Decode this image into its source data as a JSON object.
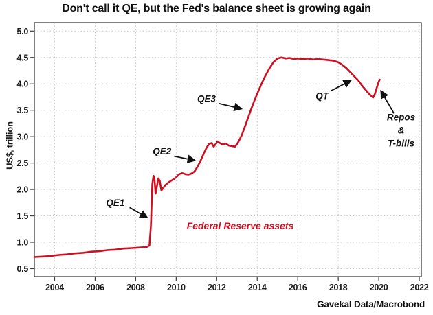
{
  "chart_data": {
    "type": "line",
    "title": "Don't call it QE, but the Fed's balance sheet is growing again",
    "ylabel": "US$, trillion",
    "xlabel": "",
    "source": "Gavekal Data/Macrobond",
    "grid": true,
    "legend_position": "none",
    "line_color": "#cc1022",
    "x_ticks": [
      2004,
      2006,
      2008,
      2010,
      2012,
      2014,
      2016,
      2018,
      2020,
      2022
    ],
    "y_ticks": [
      0.5,
      1.0,
      1.5,
      2.0,
      2.5,
      3.0,
      3.5,
      4.0,
      4.5,
      5.0
    ],
    "x_range": [
      2003.0,
      2022.1
    ],
    "y_range": [
      0.35,
      5.16
    ],
    "series": [
      {
        "name": "Federal Reserve assets",
        "color": "#cc1022",
        "label_pos": [
          2013.16,
          1.25
        ],
        "points": [
          [
            2003.0,
            0.72
          ],
          [
            2003.4,
            0.73
          ],
          [
            2003.8,
            0.74
          ],
          [
            2004.2,
            0.76
          ],
          [
            2004.6,
            0.77
          ],
          [
            2005.0,
            0.79
          ],
          [
            2005.4,
            0.8
          ],
          [
            2005.8,
            0.82
          ],
          [
            2006.2,
            0.83
          ],
          [
            2006.6,
            0.85
          ],
          [
            2007.0,
            0.86
          ],
          [
            2007.4,
            0.88
          ],
          [
            2007.8,
            0.89
          ],
          [
            2008.2,
            0.9
          ],
          [
            2008.55,
            0.91
          ],
          [
            2008.68,
            0.94
          ],
          [
            2008.75,
            1.3
          ],
          [
            2008.82,
            2.1
          ],
          [
            2008.88,
            2.26
          ],
          [
            2008.93,
            2.2
          ],
          [
            2008.98,
            1.92
          ],
          [
            2009.05,
            2.06
          ],
          [
            2009.12,
            2.21
          ],
          [
            2009.19,
            2.16
          ],
          [
            2009.27,
            1.98
          ],
          [
            2009.36,
            2.03
          ],
          [
            2009.46,
            2.08
          ],
          [
            2009.58,
            2.12
          ],
          [
            2009.72,
            2.16
          ],
          [
            2009.86,
            2.19
          ],
          [
            2010.0,
            2.23
          ],
          [
            2010.15,
            2.29
          ],
          [
            2010.3,
            2.31
          ],
          [
            2010.45,
            2.29
          ],
          [
            2010.6,
            2.28
          ],
          [
            2010.75,
            2.3
          ],
          [
            2010.9,
            2.34
          ],
          [
            2011.05,
            2.43
          ],
          [
            2011.2,
            2.54
          ],
          [
            2011.35,
            2.67
          ],
          [
            2011.5,
            2.79
          ],
          [
            2011.62,
            2.86
          ],
          [
            2011.75,
            2.88
          ],
          [
            2011.85,
            2.81
          ],
          [
            2011.95,
            2.86
          ],
          [
            2012.05,
            2.91
          ],
          [
            2012.15,
            2.88
          ],
          [
            2012.3,
            2.85
          ],
          [
            2012.45,
            2.87
          ],
          [
            2012.6,
            2.83
          ],
          [
            2012.75,
            2.82
          ],
          [
            2012.9,
            2.81
          ],
          [
            2013.0,
            2.86
          ],
          [
            2013.1,
            2.92
          ],
          [
            2013.25,
            3.04
          ],
          [
            2013.4,
            3.2
          ],
          [
            2013.55,
            3.36
          ],
          [
            2013.7,
            3.52
          ],
          [
            2013.85,
            3.67
          ],
          [
            2014.0,
            3.81
          ],
          [
            2014.2,
            3.99
          ],
          [
            2014.4,
            4.15
          ],
          [
            2014.6,
            4.29
          ],
          [
            2014.8,
            4.41
          ],
          [
            2015.0,
            4.48
          ],
          [
            2015.2,
            4.5
          ],
          [
            2015.4,
            4.48
          ],
          [
            2015.6,
            4.49
          ],
          [
            2015.8,
            4.47
          ],
          [
            2016.0,
            4.48
          ],
          [
            2016.25,
            4.47
          ],
          [
            2016.5,
            4.48
          ],
          [
            2016.75,
            4.46
          ],
          [
            2017.0,
            4.47
          ],
          [
            2017.25,
            4.46
          ],
          [
            2017.5,
            4.45
          ],
          [
            2017.75,
            4.44
          ],
          [
            2018.0,
            4.41
          ],
          [
            2018.2,
            4.36
          ],
          [
            2018.4,
            4.3
          ],
          [
            2018.6,
            4.22
          ],
          [
            2018.8,
            4.14
          ],
          [
            2019.0,
            4.06
          ],
          [
            2019.15,
            3.98
          ],
          [
            2019.3,
            3.91
          ],
          [
            2019.45,
            3.84
          ],
          [
            2019.6,
            3.78
          ],
          [
            2019.72,
            3.74
          ],
          [
            2019.8,
            3.8
          ],
          [
            2019.88,
            3.9
          ],
          [
            2019.96,
            4.0
          ],
          [
            2020.04,
            4.08
          ]
        ]
      }
    ],
    "annotations": [
      {
        "label": "QE1",
        "text_pos": [
          2007.0,
          1.75
        ],
        "arrow_from": [
          2007.7,
          1.66
        ],
        "arrow_to": [
          2008.55,
          1.47
        ]
      },
      {
        "label": "QE2",
        "text_pos": [
          2009.3,
          2.72
        ],
        "arrow_from": [
          2009.9,
          2.63
        ],
        "arrow_to": [
          2010.9,
          2.55
        ]
      },
      {
        "label": "QE3",
        "text_pos": [
          2011.5,
          3.72
        ],
        "arrow_from": [
          2012.1,
          3.63
        ],
        "arrow_to": [
          2013.2,
          3.53
        ]
      },
      {
        "label": "QT",
        "text_pos": [
          2017.2,
          3.77
        ],
        "arrow_from": [
          2017.65,
          3.87
        ],
        "arrow_to": [
          2018.6,
          4.06
        ]
      },
      {
        "label": "Repos\n&\nT-bills",
        "text_pos": [
          2021.1,
          3.12
        ],
        "arrow_from": [
          2020.75,
          3.44
        ],
        "arrow_to": [
          2020.12,
          3.86
        ]
      }
    ]
  }
}
